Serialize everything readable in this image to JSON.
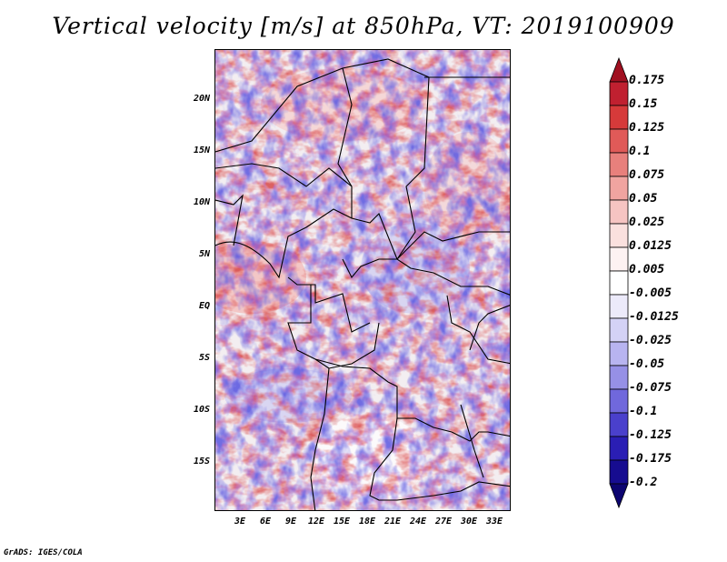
{
  "title": "Vertical velocity [m/s] at 850hPa, VT: 2019100909",
  "footer": "GrADS: IGES/COLA",
  "lat_labels": [
    "20N",
    "15N",
    "10N",
    "5N",
    "EQ",
    "5S",
    "10S",
    "15S"
  ],
  "lon_labels": [
    "3E",
    "6E",
    "9E",
    "12E",
    "15E",
    "18E",
    "21E",
    "24E",
    "27E",
    "30E",
    "33E"
  ],
  "colorbar": {
    "levels": [
      "0.175",
      "0.15",
      "0.125",
      "0.1",
      "0.075",
      "0.05",
      "0.025",
      "0.0125",
      "0.005",
      "-0.005",
      "-0.0125",
      "-0.025",
      "-0.05",
      "-0.075",
      "-0.1",
      "-0.125",
      "-0.175",
      "-0.2"
    ],
    "colors": [
      "#a01020",
      "#c02030",
      "#d63a3a",
      "#e05a58",
      "#e8807c",
      "#f0a4a0",
      "#f6c4c2",
      "#fae0de",
      "#fdf2f2",
      "#ffffff",
      "#eceafa",
      "#d4d2f6",
      "#b8b4f0",
      "#9690e6",
      "#7068dc",
      "#4a40cc",
      "#2a1eb4",
      "#160c90",
      "#0c0470"
    ]
  }
}
